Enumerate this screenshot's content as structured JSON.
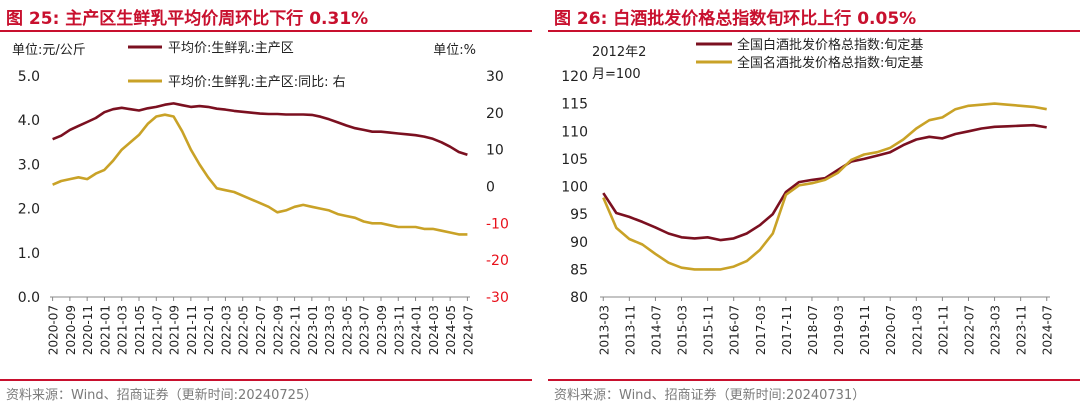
{
  "chart_data": [
    {
      "type": "line",
      "title": "图 25: 主产区生鲜乳平均价周环比下行 0.31%",
      "source": "资料来源：Wind、招商证券（更新时间:20240725）",
      "y_left_unit": "单位:元/公斤",
      "y_right_unit": "单位:%",
      "legend_position": "top",
      "grid": false,
      "y_left_lim": [
        0,
        5
      ],
      "y_left_ticks": [
        "0.0",
        "1.0",
        "2.0",
        "3.0",
        "4.0",
        "5.0"
      ],
      "y_right_lim": [
        -30,
        30
      ],
      "y_right_ticks": [
        "-30",
        "-20",
        "-10",
        "0",
        "10",
        "20",
        "30"
      ],
      "x_tick_labels": [
        "2020-07",
        "2020-09",
        "2020-11",
        "2021-01",
        "2021-03",
        "2021-05",
        "2021-07",
        "2021-09",
        "2021-11",
        "2022-01",
        "2022-03",
        "2022-05",
        "2022-07",
        "2022-09",
        "2022-11",
        "2023-01",
        "2023-03",
        "2023-05",
        "2023-07",
        "2023-09",
        "2023-11",
        "2024-01",
        "2024-03",
        "2024-05",
        "2024-07"
      ],
      "series": [
        {
          "name": "平均价:生鲜乳:主产区",
          "axis": "left",
          "color": "#7b1020",
          "x": [
            "2020-07",
            "2020-08",
            "2020-09",
            "2020-10",
            "2020-11",
            "2020-12",
            "2021-01",
            "2021-02",
            "2021-03",
            "2021-04",
            "2021-05",
            "2021-06",
            "2021-07",
            "2021-08",
            "2021-09",
            "2021-10",
            "2021-11",
            "2021-12",
            "2022-01",
            "2022-02",
            "2022-03",
            "2022-04",
            "2022-05",
            "2022-06",
            "2022-07",
            "2022-08",
            "2022-09",
            "2022-10",
            "2022-11",
            "2022-12",
            "2023-01",
            "2023-02",
            "2023-03",
            "2023-04",
            "2023-05",
            "2023-06",
            "2023-07",
            "2023-08",
            "2023-09",
            "2023-10",
            "2023-11",
            "2023-12",
            "2024-01",
            "2024-02",
            "2024-03",
            "2024-04",
            "2024-05",
            "2024-06",
            "2024-07"
          ],
          "values": [
            3.57,
            3.65,
            3.78,
            3.87,
            3.96,
            4.05,
            4.18,
            4.25,
            4.28,
            4.25,
            4.22,
            4.27,
            4.3,
            4.35,
            4.38,
            4.34,
            4.3,
            4.32,
            4.3,
            4.26,
            4.24,
            4.21,
            4.19,
            4.17,
            4.15,
            4.14,
            4.14,
            4.13,
            4.13,
            4.13,
            4.12,
            4.08,
            4.02,
            3.95,
            3.88,
            3.82,
            3.78,
            3.74,
            3.74,
            3.72,
            3.7,
            3.68,
            3.66,
            3.63,
            3.58,
            3.5,
            3.4,
            3.28,
            3.22
          ]
        },
        {
          "name": "平均价:生鲜乳:主产区:同比:  右",
          "axis": "right",
          "color": "#c9a227",
          "x": [
            "2020-07",
            "2020-08",
            "2020-09",
            "2020-10",
            "2020-11",
            "2020-12",
            "2021-01",
            "2021-02",
            "2021-03",
            "2021-04",
            "2021-05",
            "2021-06",
            "2021-07",
            "2021-08",
            "2021-09",
            "2021-10",
            "2021-11",
            "2021-12",
            "2022-01",
            "2022-02",
            "2022-03",
            "2022-04",
            "2022-05",
            "2022-06",
            "2022-07",
            "2022-08",
            "2022-09",
            "2022-10",
            "2022-11",
            "2022-12",
            "2023-01",
            "2023-02",
            "2023-03",
            "2023-04",
            "2023-05",
            "2023-06",
            "2023-07",
            "2023-08",
            "2023-09",
            "2023-10",
            "2023-11",
            "2023-12",
            "2024-01",
            "2024-02",
            "2024-03",
            "2024-04",
            "2024-05",
            "2024-06",
            "2024-07"
          ],
          "values": [
            0.5,
            1.5,
            2.0,
            2.5,
            2.0,
            3.5,
            4.5,
            7.0,
            10.0,
            12.0,
            14.0,
            17.0,
            19.0,
            19.5,
            19.0,
            15.0,
            10.0,
            6.0,
            2.5,
            -0.5,
            -1.0,
            -1.5,
            -2.5,
            -3.5,
            -4.5,
            -5.5,
            -7.0,
            -6.5,
            -5.5,
            -5.0,
            -5.5,
            -6.0,
            -6.5,
            -7.5,
            -8.0,
            -8.5,
            -9.5,
            -10.0,
            -10.0,
            -10.5,
            -11.0,
            -11.0,
            -11.0,
            -11.5,
            -11.5,
            -12.0,
            -12.5,
            -13.0,
            -13.0
          ]
        }
      ]
    },
    {
      "type": "line",
      "title": "图 26: 白酒批发价格总指数旬环比上行 0.05%",
      "source": "资料来源：Wind、招商证券（更新时间:20240731）",
      "base_note_1": "2012年2",
      "base_note_2": "月=100",
      "legend_position": "top-right",
      "grid": false,
      "ylim": [
        80,
        120
      ],
      "y_ticks": [
        "80",
        "85",
        "90",
        "95",
        "100",
        "105",
        "110",
        "115",
        "120"
      ],
      "x_tick_labels": [
        "2013-03",
        "2013-11",
        "2014-07",
        "2015-03",
        "2015-11",
        "2016-07",
        "2017-03",
        "2017-11",
        "2018-07",
        "2019-03",
        "2019-11",
        "2020-07",
        "2021-03",
        "2021-11",
        "2022-07",
        "2023-03",
        "2023-11",
        "2024-07"
      ],
      "series": [
        {
          "name": "全国白酒批发价格总指数:旬定基",
          "color": "#7b1020",
          "x": [
            "2013-03",
            "2013-07",
            "2013-11",
            "2014-03",
            "2014-07",
            "2014-11",
            "2015-03",
            "2015-07",
            "2015-11",
            "2016-03",
            "2016-07",
            "2016-11",
            "2017-03",
            "2017-07",
            "2017-11",
            "2018-03",
            "2018-07",
            "2018-11",
            "2019-03",
            "2019-07",
            "2019-11",
            "2020-03",
            "2020-07",
            "2020-11",
            "2021-03",
            "2021-07",
            "2021-11",
            "2022-03",
            "2022-07",
            "2022-11",
            "2023-03",
            "2023-07",
            "2023-11",
            "2024-03",
            "2024-07"
          ],
          "values": [
            98.8,
            95.2,
            94.5,
            93.6,
            92.6,
            91.5,
            90.8,
            90.6,
            90.8,
            90.3,
            90.6,
            91.5,
            93.0,
            95.0,
            99.0,
            100.8,
            101.2,
            101.5,
            103.0,
            104.5,
            105.0,
            105.6,
            106.2,
            107.5,
            108.5,
            109.0,
            108.7,
            109.5,
            110.0,
            110.5,
            110.8,
            110.9,
            111.0,
            111.1,
            110.7
          ]
        },
        {
          "name": "全国名酒批发价格总指数:旬定基",
          "color": "#c9a227",
          "x": [
            "2013-03",
            "2013-07",
            "2013-11",
            "2014-03",
            "2014-07",
            "2014-11",
            "2015-03",
            "2015-07",
            "2015-11",
            "2016-03",
            "2016-07",
            "2016-11",
            "2017-03",
            "2017-07",
            "2017-11",
            "2018-03",
            "2018-07",
            "2018-11",
            "2019-03",
            "2019-07",
            "2019-11",
            "2020-03",
            "2020-07",
            "2020-11",
            "2021-03",
            "2021-07",
            "2021-11",
            "2022-03",
            "2022-07",
            "2022-11",
            "2023-03",
            "2023-07",
            "2023-11",
            "2024-03",
            "2024-07"
          ],
          "values": [
            98.0,
            92.5,
            90.5,
            89.5,
            87.8,
            86.2,
            85.3,
            85.0,
            85.0,
            85.0,
            85.5,
            86.5,
            88.5,
            91.5,
            98.5,
            100.2,
            100.6,
            101.2,
            102.5,
            104.8,
            105.8,
            106.2,
            107.0,
            108.5,
            110.5,
            112.0,
            112.5,
            114.0,
            114.6,
            114.8,
            115.0,
            114.8,
            114.6,
            114.4,
            114.0
          ]
        }
      ]
    }
  ]
}
